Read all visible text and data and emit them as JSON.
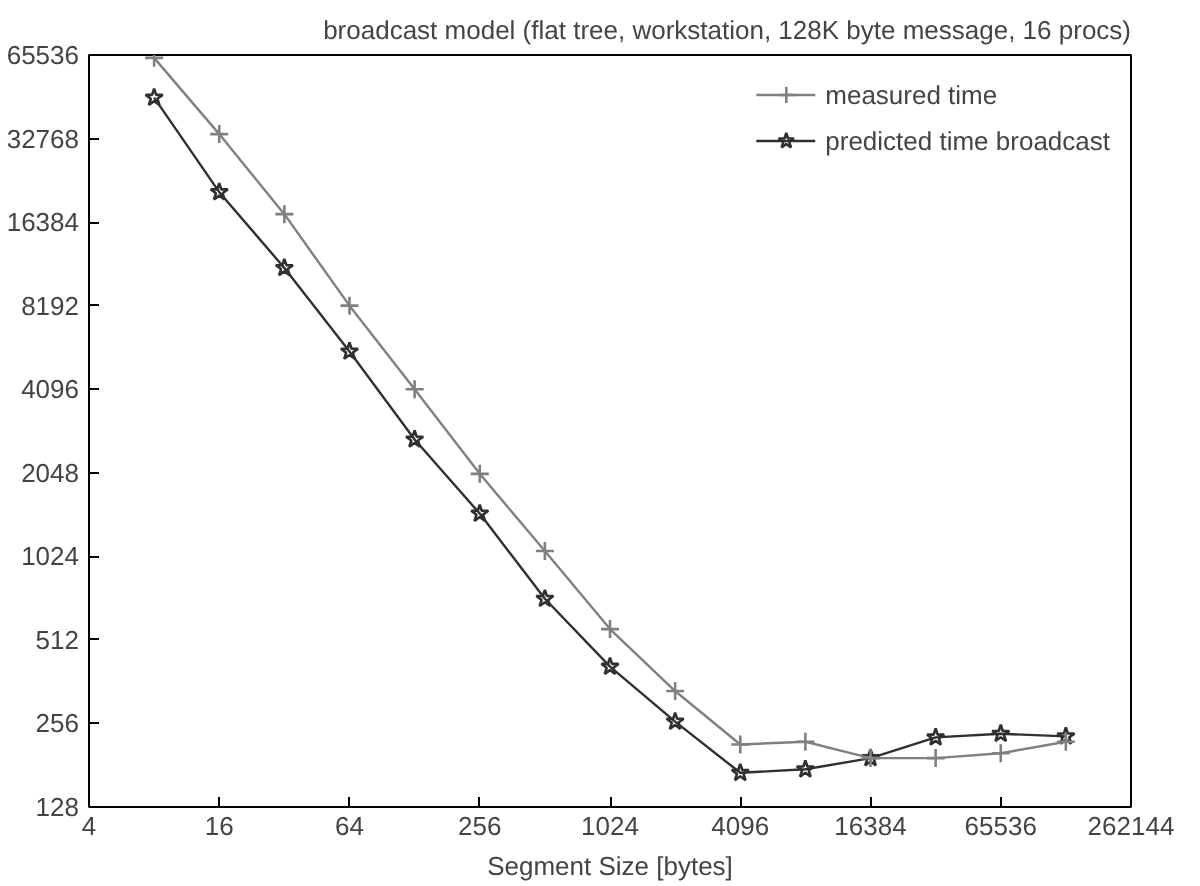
{
  "chart_data": {
    "type": "line",
    "title": "broadcast model (flat tree, workstation, 128K byte message, 16 procs)",
    "xlabel": "Segment Size [bytes]",
    "x": [
      8,
      16,
      32,
      64,
      128,
      256,
      512,
      1024,
      2048,
      4096,
      8192,
      16384,
      32768,
      65536,
      131072
    ],
    "series": [
      {
        "name": "measured time",
        "color": "#808080",
        "marker": "cross",
        "values": [
          64000,
          34000,
          17500,
          8192,
          4096,
          2030,
          1070,
          560,
          335,
          215,
          220,
          192,
          192,
          200,
          220
        ]
      },
      {
        "name": "predicted time broadcast",
        "color": "#303030",
        "marker": "star",
        "values": [
          46000,
          21000,
          11200,
          5600,
          2700,
          1460,
          720,
          410,
          260,
          170,
          175,
          192,
          228,
          235,
          230
        ]
      }
    ],
    "log": "xy",
    "xlim": [
      4,
      262144
    ],
    "ylim": [
      128,
      65536
    ],
    "xticks": [
      4,
      16,
      64,
      256,
      1024,
      4096,
      16384,
      65536,
      262144
    ],
    "yticks": [
      128,
      256,
      512,
      1024,
      2048,
      4096,
      8192,
      16384,
      32768,
      65536
    ],
    "grid": false,
    "legend": "top right",
    "line_style": "solid"
  }
}
